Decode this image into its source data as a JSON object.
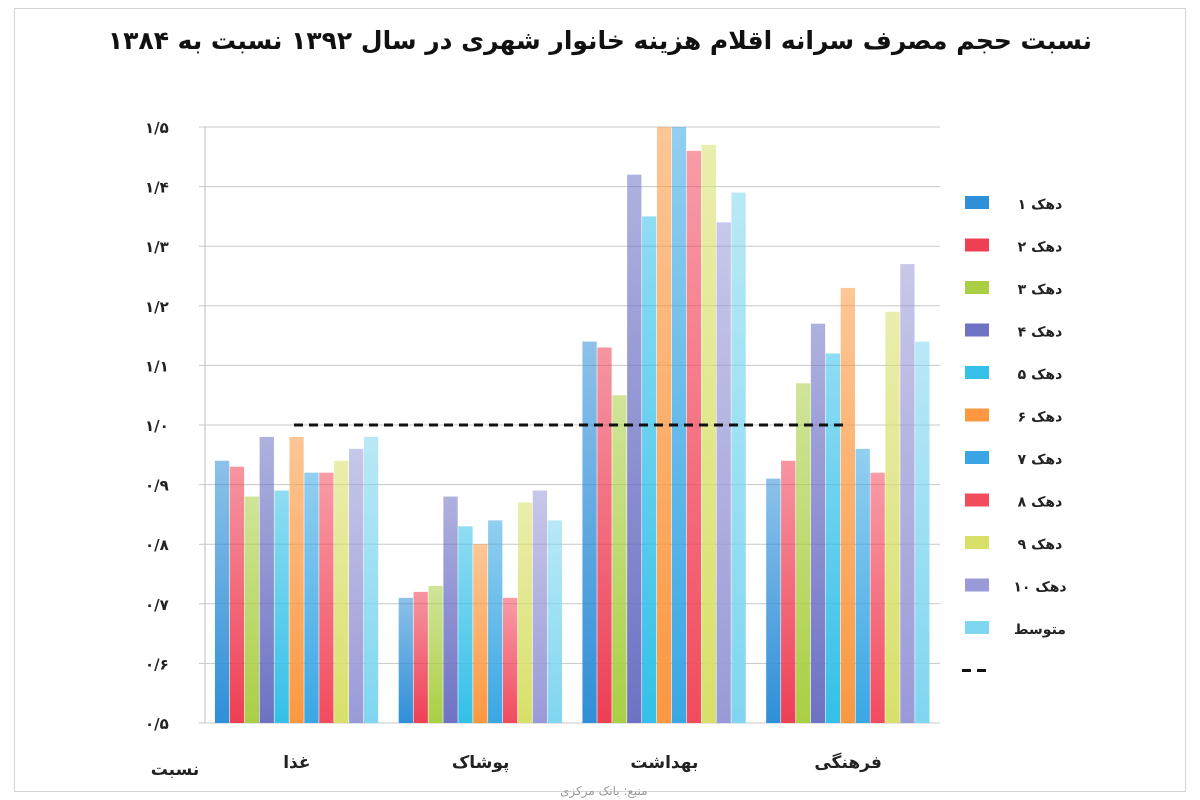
{
  "chart_data": {
    "type": "bar",
    "title": "نسبت حجم مصرف سرانه اقلام هزینه خانوار شهری در سال ۱۳۹۲ نسبت به ۱۳۸۴",
    "ylabel": "نسبت",
    "ylim": [
      0.5,
      1.5
    ],
    "yticks": [
      "۰/۵",
      "۰/۶",
      "۰/۷",
      "۰/۸",
      "۰/۹",
      "۱/۰",
      "۱/۱",
      "۱/۲",
      "۱/۳",
      "۱/۴",
      "۱/۵"
    ],
    "grid": true,
    "legend_position": "right",
    "categories": [
      "غذا",
      "پوشاک",
      "بهداشت",
      "فرهنگی"
    ],
    "series": [
      {
        "name": "دهک ۱",
        "color": "#2f8fd8",
        "values": [
          0.94,
          0.71,
          1.14,
          0.91
        ]
      },
      {
        "name": "دهک ۲",
        "color": "#ee3f55",
        "values": [
          0.93,
          0.72,
          1.13,
          0.94
        ]
      },
      {
        "name": "دهک ۳",
        "color": "#aacf45",
        "values": [
          0.88,
          0.73,
          1.05,
          1.07
        ]
      },
      {
        "name": "دهک ۴",
        "color": "#6d72c4",
        "values": [
          0.98,
          0.88,
          1.42,
          1.17
        ]
      },
      {
        "name": "دهک ۵",
        "color": "#34c0e8",
        "values": [
          0.89,
          0.83,
          1.35,
          1.12
        ]
      },
      {
        "name": "دهک ۶",
        "color": "#fb9840",
        "values": [
          0.98,
          0.8,
          1.5,
          1.23
        ]
      },
      {
        "name": "دهک ۷",
        "color": "#3aa7e4",
        "values": [
          0.92,
          0.84,
          1.5,
          0.96
        ]
      },
      {
        "name": "دهک ۸",
        "color": "#f24b5e",
        "values": [
          0.92,
          0.71,
          1.46,
          0.92
        ]
      },
      {
        "name": "دهک ۹",
        "color": "#d8e06a",
        "values": [
          0.94,
          0.87,
          1.47,
          1.19
        ]
      },
      {
        "name": "دهک ۱۰",
        "color": "#9a9ad8",
        "values": [
          0.96,
          0.89,
          1.34,
          1.27
        ]
      },
      {
        "name": "متوسط",
        "color": "#7fd6f0",
        "values": [
          0.98,
          0.84,
          1.39,
          1.14
        ]
      }
    ],
    "reference_line": {
      "name": "",
      "value": 1.0,
      "style": "dashed",
      "color": "#111111"
    }
  },
  "footer_note": "منبع: بانک مرکزی"
}
